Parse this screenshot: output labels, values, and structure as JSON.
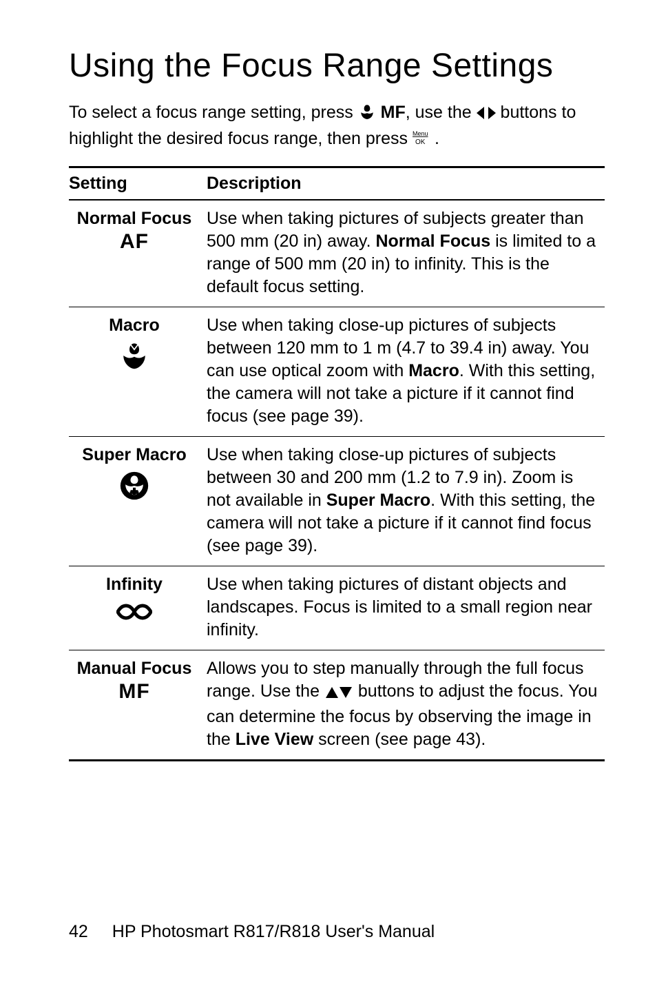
{
  "title": "Using the Focus Range Settings",
  "intro_part1": "To select a focus range setting, press ",
  "intro_mf": "MF",
  "intro_part2": ", use the ",
  "intro_part3": " buttons to highlight the desired focus range, then press ",
  "intro_part4": ".",
  "table": {
    "header_setting": "Setting",
    "header_description": "Description",
    "rows": [
      {
        "name": "Normal Focus",
        "sub": "AF",
        "icon": "none",
        "desc_pre": "Use when taking pictures of subjects greater than 500 mm (20 in) away. ",
        "desc_bold": "Normal Focus",
        "desc_post": " is limited to a range of 500 mm (20 in) to infinity. This is the default focus setting."
      },
      {
        "name": "Macro",
        "sub": "",
        "icon": "tulip",
        "desc_pre": "Use when taking close-up pictures of subjects between 120 mm to 1 m (4.7 to 39.4 in) away. You can use optical zoom with ",
        "desc_bold": "Macro",
        "desc_post": ". With this setting, the camera will not take a picture if it cannot find focus (see page 39)."
      },
      {
        "name": "Super Macro",
        "sub": "",
        "icon": "tulip-plus",
        "desc_pre": "Use when taking close-up pictures of subjects between 30 and 200 mm (1.2 to 7.9 in). Zoom is not available in ",
        "desc_bold": "Super Macro",
        "desc_post": ". With this setting, the camera will not take a picture if it cannot find focus (see page 39)."
      },
      {
        "name": "Infinity",
        "sub": "",
        "icon": "infinity",
        "desc_pre": "Use when taking pictures of distant objects and landscapes. Focus is limited to a small region near infinity.",
        "desc_bold": "",
        "desc_post": ""
      },
      {
        "name": "Manual Focus",
        "sub": "MF",
        "icon": "none",
        "desc_pre": "Allows you to step manually through the full focus range. Use the ",
        "desc_inline_icon": "updown",
        "desc_mid": " buttons to adjust the focus. You can determine the focus by observing the image in the ",
        "desc_bold": "Live View",
        "desc_post": " screen (see page 43)."
      }
    ]
  },
  "footer_pageno": "42",
  "footer_text": "HP Photosmart R817/R818 User's Manual",
  "colors": {
    "text": "#000000",
    "bg": "#ffffff"
  }
}
